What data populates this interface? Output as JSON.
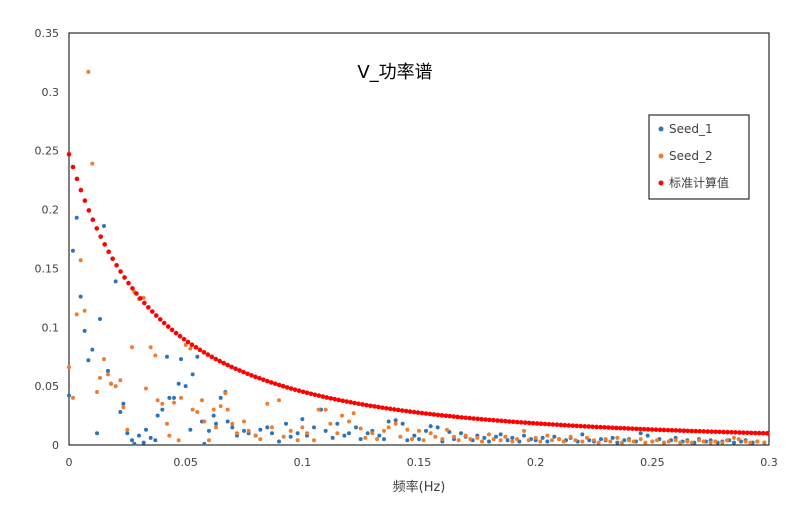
{
  "chart_data": {
    "type": "scatter",
    "title": "V_功率谱",
    "xlabel": "频率(Hz)",
    "ylabel": "",
    "xlim": [
      0,
      0.3
    ],
    "ylim": [
      0,
      0.35
    ],
    "xticks": [
      "0",
      "0.05",
      "0.1",
      "0.15",
      "0.2",
      "0.25",
      "0.3"
    ],
    "yticks": [
      "0",
      "0.05",
      "0.1",
      "0.15",
      "0.2",
      "0.25",
      "0.3",
      "0.35"
    ],
    "grid": false,
    "legend_position": "right",
    "series": [
      {
        "name": "Seed_1",
        "color": "#2E75B6",
        "points": [
          [
            0.0,
            0.042
          ],
          [
            0.0017,
            0.165
          ],
          [
            0.0033,
            0.193
          ],
          [
            0.005,
            0.126
          ],
          [
            0.0067,
            0.097
          ],
          [
            0.0083,
            0.072
          ],
          [
            0.01,
            0.081
          ],
          [
            0.012,
            0.01
          ],
          [
            0.0133,
            0.107
          ],
          [
            0.015,
            0.186
          ],
          [
            0.0167,
            0.063
          ],
          [
            0.018,
            0.052
          ],
          [
            0.02,
            0.139
          ],
          [
            0.022,
            0.028
          ],
          [
            0.0233,
            0.035
          ],
          [
            0.025,
            0.01
          ],
          [
            0.027,
            0.004
          ],
          [
            0.028,
            0.001
          ],
          [
            0.03,
            0.008
          ],
          [
            0.032,
            0.002
          ],
          [
            0.033,
            0.013
          ],
          [
            0.035,
            0.006
          ],
          [
            0.037,
            0.004
          ],
          [
            0.038,
            0.025
          ],
          [
            0.04,
            0.03
          ],
          [
            0.042,
            0.075
          ],
          [
            0.043,
            0.04
          ],
          [
            0.045,
            0.04
          ],
          [
            0.047,
            0.052
          ],
          [
            0.048,
            0.073
          ],
          [
            0.05,
            0.05
          ],
          [
            0.052,
            0.013
          ],
          [
            0.053,
            0.06
          ],
          [
            0.055,
            0.075
          ],
          [
            0.057,
            0.02
          ],
          [
            0.058,
            0.001
          ],
          [
            0.06,
            0.012
          ],
          [
            0.062,
            0.025
          ],
          [
            0.063,
            0.018
          ],
          [
            0.065,
            0.04
          ],
          [
            0.067,
            0.045
          ],
          [
            0.068,
            0.02
          ],
          [
            0.07,
            0.015
          ],
          [
            0.072,
            0.008
          ],
          [
            0.075,
            0.012
          ],
          [
            0.077,
            0.01
          ],
          [
            0.08,
            0.008
          ],
          [
            0.082,
            0.013
          ],
          [
            0.085,
            0.015
          ],
          [
            0.087,
            0.01
          ],
          [
            0.09,
            0.003
          ],
          [
            0.093,
            0.018
          ],
          [
            0.095,
            0.007
          ],
          [
            0.098,
            0.01
          ],
          [
            0.1,
            0.022
          ],
          [
            0.102,
            0.008
          ],
          [
            0.105,
            0.015
          ],
          [
            0.108,
            0.03
          ],
          [
            0.11,
            0.012
          ],
          [
            0.113,
            0.006
          ],
          [
            0.115,
            0.018
          ],
          [
            0.118,
            0.008
          ],
          [
            0.12,
            0.01
          ],
          [
            0.123,
            0.015
          ],
          [
            0.125,
            0.005
          ],
          [
            0.128,
            0.01
          ],
          [
            0.13,
            0.012
          ],
          [
            0.133,
            0.008
          ],
          [
            0.135,
            0.005
          ],
          [
            0.137,
            0.02
          ],
          [
            0.14,
            0.021
          ],
          [
            0.143,
            0.018
          ],
          [
            0.145,
            0.004
          ],
          [
            0.148,
            0.008
          ],
          [
            0.15,
            0.005
          ],
          [
            0.153,
            0.012
          ],
          [
            0.155,
            0.016
          ],
          [
            0.158,
            0.015
          ],
          [
            0.16,
            0.003
          ],
          [
            0.163,
            0.011
          ],
          [
            0.165,
            0.005
          ],
          [
            0.168,
            0.01
          ],
          [
            0.17,
            0.007
          ],
          [
            0.173,
            0.004
          ],
          [
            0.175,
            0.008
          ],
          [
            0.178,
            0.006
          ],
          [
            0.18,
            0.003
          ],
          [
            0.183,
            0.007
          ],
          [
            0.185,
            0.009
          ],
          [
            0.188,
            0.004
          ],
          [
            0.19,
            0.006
          ],
          [
            0.193,
            0.003
          ],
          [
            0.195,
            0.008
          ],
          [
            0.198,
            0.005
          ],
          [
            0.2,
            0.004
          ],
          [
            0.203,
            0.006
          ],
          [
            0.205,
            0.003
          ],
          [
            0.208,
            0.007
          ],
          [
            0.21,
            0.005
          ],
          [
            0.213,
            0.004
          ],
          [
            0.215,
            0.006
          ],
          [
            0.218,
            0.003
          ],
          [
            0.22,
            0.009
          ],
          [
            0.223,
            0.004
          ],
          [
            0.225,
            0.003
          ],
          [
            0.228,
            0.005
          ],
          [
            0.23,
            0.004
          ],
          [
            0.233,
            0.006
          ],
          [
            0.235,
            0.002
          ],
          [
            0.238,
            0.004
          ],
          [
            0.24,
            0.005
          ],
          [
            0.243,
            0.003
          ],
          [
            0.245,
            0.01
          ],
          [
            0.248,
            0.008
          ],
          [
            0.25,
            0.003
          ],
          [
            0.253,
            0.005
          ],
          [
            0.255,
            0.002
          ],
          [
            0.258,
            0.004
          ],
          [
            0.26,
            0.006
          ],
          [
            0.263,
            0.003
          ],
          [
            0.265,
            0.004
          ],
          [
            0.268,
            0.002
          ],
          [
            0.27,
            0.005
          ],
          [
            0.273,
            0.003
          ],
          [
            0.275,
            0.004
          ],
          [
            0.278,
            0.002
          ],
          [
            0.28,
            0.003
          ],
          [
            0.283,
            0.004
          ],
          [
            0.285,
            0.002
          ],
          [
            0.288,
            0.003
          ],
          [
            0.29,
            0.004
          ],
          [
            0.293,
            0.002
          ],
          [
            0.295,
            0.003
          ],
          [
            0.298,
            0.002
          ]
        ]
      },
      {
        "name": "Seed_2",
        "color": "#ED7D31",
        "points": [
          [
            0.0,
            0.066
          ],
          [
            0.0017,
            0.04
          ],
          [
            0.0033,
            0.111
          ],
          [
            0.005,
            0.157
          ],
          [
            0.0067,
            0.114
          ],
          [
            0.0083,
            0.317
          ],
          [
            0.01,
            0.239
          ],
          [
            0.012,
            0.045
          ],
          [
            0.0133,
            0.057
          ],
          [
            0.015,
            0.073
          ],
          [
            0.0167,
            0.06
          ],
          [
            0.018,
            0.052
          ],
          [
            0.02,
            0.05
          ],
          [
            0.022,
            0.055
          ],
          [
            0.0233,
            0.032
          ],
          [
            0.025,
            0.013
          ],
          [
            0.027,
            0.083
          ],
          [
            0.028,
            0.13
          ],
          [
            0.03,
            0.124
          ],
          [
            0.032,
            0.125
          ],
          [
            0.033,
            0.048
          ],
          [
            0.035,
            0.083
          ],
          [
            0.037,
            0.076
          ],
          [
            0.038,
            0.038
          ],
          [
            0.04,
            0.035
          ],
          [
            0.042,
            0.018
          ],
          [
            0.043,
            0.008
          ],
          [
            0.045,
            0.036
          ],
          [
            0.047,
            0.004
          ],
          [
            0.048,
            0.04
          ],
          [
            0.05,
            0.085
          ],
          [
            0.052,
            0.082
          ],
          [
            0.053,
            0.03
          ],
          [
            0.055,
            0.028
          ],
          [
            0.057,
            0.038
          ],
          [
            0.058,
            0.02
          ],
          [
            0.06,
            0.004
          ],
          [
            0.062,
            0.03
          ],
          [
            0.063,
            0.015
          ],
          [
            0.065,
            0.033
          ],
          [
            0.067,
            0.044
          ],
          [
            0.068,
            0.03
          ],
          [
            0.07,
            0.018
          ],
          [
            0.072,
            0.01
          ],
          [
            0.075,
            0.02
          ],
          [
            0.077,
            0.012
          ],
          [
            0.08,
            0.008
          ],
          [
            0.082,
            0.005
          ],
          [
            0.085,
            0.035
          ],
          [
            0.087,
            0.015
          ],
          [
            0.09,
            0.038
          ],
          [
            0.092,
            0.007
          ],
          [
            0.095,
            0.012
          ],
          [
            0.098,
            0.004
          ],
          [
            0.1,
            0.015
          ],
          [
            0.102,
            0.01
          ],
          [
            0.105,
            0.004
          ],
          [
            0.107,
            0.03
          ],
          [
            0.11,
            0.03
          ],
          [
            0.112,
            0.018
          ],
          [
            0.115,
            0.01
          ],
          [
            0.117,
            0.025
          ],
          [
            0.12,
            0.02
          ],
          [
            0.122,
            0.027
          ],
          [
            0.125,
            0.014
          ],
          [
            0.127,
            0.006
          ],
          [
            0.13,
            0.01
          ],
          [
            0.132,
            0.005
          ],
          [
            0.135,
            0.012
          ],
          [
            0.137,
            0.015
          ],
          [
            0.14,
            0.018
          ],
          [
            0.142,
            0.007
          ],
          [
            0.145,
            0.013
          ],
          [
            0.147,
            0.005
          ],
          [
            0.15,
            0.012
          ],
          [
            0.152,
            0.004
          ],
          [
            0.155,
            0.01
          ],
          [
            0.157,
            0.007
          ],
          [
            0.16,
            0.005
          ],
          [
            0.162,
            0.013
          ],
          [
            0.165,
            0.007
          ],
          [
            0.167,
            0.004
          ],
          [
            0.17,
            0.008
          ],
          [
            0.172,
            0.005
          ],
          [
            0.175,
            0.006
          ],
          [
            0.177,
            0.003
          ],
          [
            0.18,
            0.009
          ],
          [
            0.182,
            0.005
          ],
          [
            0.185,
            0.004
          ],
          [
            0.187,
            0.007
          ],
          [
            0.19,
            0.003
          ],
          [
            0.192,
            0.005
          ],
          [
            0.195,
            0.012
          ],
          [
            0.197,
            0.004
          ],
          [
            0.2,
            0.006
          ],
          [
            0.202,
            0.003
          ],
          [
            0.205,
            0.008
          ],
          [
            0.207,
            0.004
          ],
          [
            0.21,
            0.005
          ],
          [
            0.212,
            0.003
          ],
          [
            0.215,
            0.007
          ],
          [
            0.217,
            0.004
          ],
          [
            0.22,
            0.003
          ],
          [
            0.222,
            0.006
          ],
          [
            0.225,
            0.004
          ],
          [
            0.227,
            0.002
          ],
          [
            0.23,
            0.005
          ],
          [
            0.232,
            0.003
          ],
          [
            0.235,
            0.006
          ],
          [
            0.237,
            0.002
          ],
          [
            0.24,
            0.004
          ],
          [
            0.242,
            0.003
          ],
          [
            0.245,
            0.005
          ],
          [
            0.247,
            0.002
          ],
          [
            0.25,
            0.003
          ],
          [
            0.252,
            0.004
          ],
          [
            0.255,
            0.002
          ],
          [
            0.257,
            0.003
          ],
          [
            0.26,
            0.004
          ],
          [
            0.262,
            0.002
          ],
          [
            0.265,
            0.003
          ],
          [
            0.267,
            0.002
          ],
          [
            0.27,
            0.004
          ],
          [
            0.272,
            0.003
          ],
          [
            0.275,
            0.002
          ],
          [
            0.277,
            0.003
          ],
          [
            0.28,
            0.002
          ],
          [
            0.282,
            0.004
          ],
          [
            0.285,
            0.006
          ],
          [
            0.287,
            0.005
          ],
          [
            0.29,
            0.003
          ],
          [
            0.292,
            0.002
          ],
          [
            0.295,
            0.003
          ],
          [
            0.298,
            0.002
          ]
        ]
      },
      {
        "name": "标准计算值",
        "color": "#FF0000",
        "model": {
          "y0": 0.247,
          "decay": 0.075,
          "x_start": 0,
          "x_end": 0.3,
          "x_step": 0.0017
        },
        "points": []
      }
    ]
  }
}
